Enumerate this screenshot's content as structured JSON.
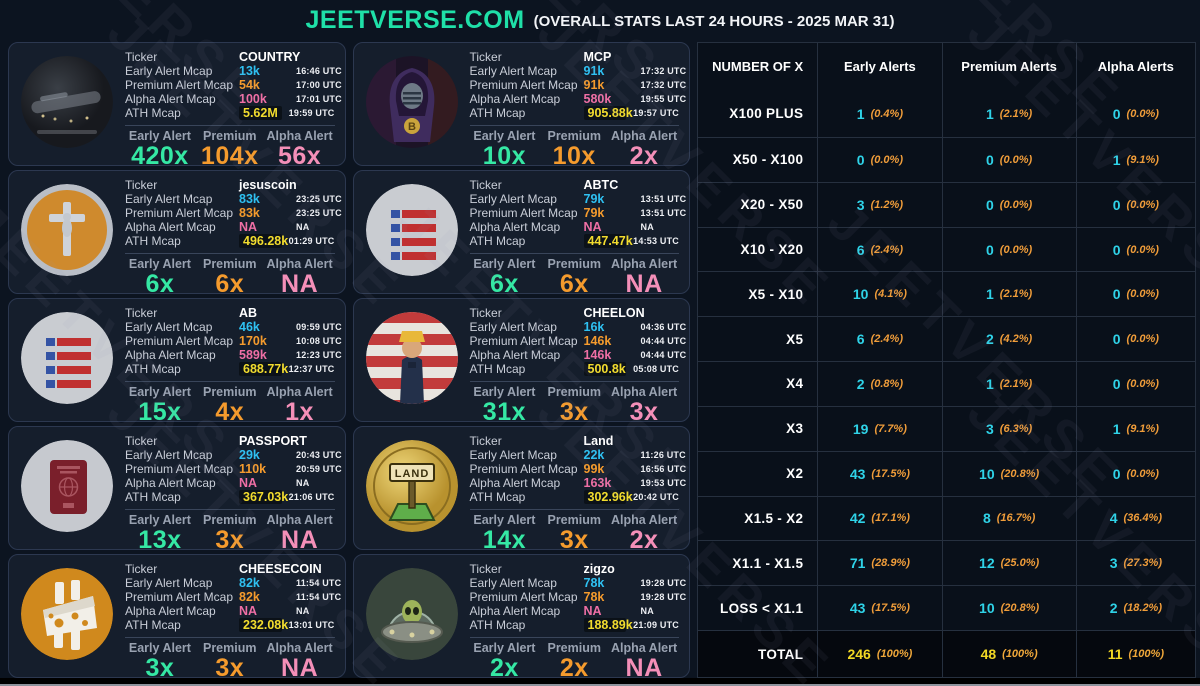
{
  "header": {
    "title": "JEETVERSE.COM",
    "subtitle": "(OVERALL STATS LAST 24 HOURS - 2025 MAR 31)"
  },
  "watermark": "JEETVERSE",
  "field_labels": {
    "ticker": "Ticker",
    "early_mcap": "Early Alert Mcap",
    "premium_mcap": "Premium Alert Mcap",
    "alpha_mcap": "Alpha Alert Mcap",
    "ath_mcap": "ATH Mcap"
  },
  "stat_labels": {
    "early": "Early Alert",
    "premium": "Premium",
    "alpha": "Alpha Alert"
  },
  "cards": [
    {
      "icon": "country",
      "ticker": "COUNTRY",
      "early": {
        "v": "13k",
        "t": "16:46 UTC"
      },
      "premium": {
        "v": "54k",
        "t": "17:00 UTC"
      },
      "alpha": {
        "v": "100k",
        "t": "17:01 UTC"
      },
      "ath": {
        "v": "5.62M",
        "t": "19:59 UTC"
      },
      "x": {
        "early": "420x",
        "premium": "104x",
        "alpha": "56x"
      }
    },
    {
      "icon": "mcp",
      "ticker": "MCP",
      "early": {
        "v": "91k",
        "t": "17:32 UTC"
      },
      "premium": {
        "v": "91k",
        "t": "17:32 UTC"
      },
      "alpha": {
        "v": "580k",
        "t": "19:55 UTC"
      },
      "ath": {
        "v": "905.88k",
        "t": "19:57 UTC"
      },
      "x": {
        "early": "10x",
        "premium": "10x",
        "alpha": "2x"
      }
    },
    {
      "icon": "jesuscoin",
      "ticker": "jesuscoin",
      "early": {
        "v": "83k",
        "t": "23:25 UTC"
      },
      "premium": {
        "v": "83k",
        "t": "23:25 UTC"
      },
      "alpha": {
        "v": "NA",
        "t": "NA"
      },
      "ath": {
        "v": "496.28k",
        "t": "01:29 UTC"
      },
      "x": {
        "early": "6x",
        "premium": "6x",
        "alpha": "NA"
      }
    },
    {
      "icon": "flag",
      "ticker": "ABTC",
      "early": {
        "v": "79k",
        "t": "13:51 UTC"
      },
      "premium": {
        "v": "79k",
        "t": "13:51 UTC"
      },
      "alpha": {
        "v": "NA",
        "t": "NA"
      },
      "ath": {
        "v": "447.47k",
        "t": "14:53 UTC"
      },
      "x": {
        "early": "6x",
        "premium": "6x",
        "alpha": "NA"
      }
    },
    {
      "icon": "flag",
      "ticker": "AB",
      "early": {
        "v": "46k",
        "t": "09:59 UTC"
      },
      "premium": {
        "v": "170k",
        "t": "10:08 UTC"
      },
      "alpha": {
        "v": "589k",
        "t": "12:23 UTC"
      },
      "ath": {
        "v": "688.77k",
        "t": "12:37 UTC"
      },
      "x": {
        "early": "15x",
        "premium": "4x",
        "alpha": "1x"
      }
    },
    {
      "icon": "cheelon",
      "ticker": "CHEELON",
      "early": {
        "v": "16k",
        "t": "04:36 UTC"
      },
      "premium": {
        "v": "146k",
        "t": "04:44 UTC"
      },
      "alpha": {
        "v": "146k",
        "t": "04:44 UTC"
      },
      "ath": {
        "v": "500.8k",
        "t": "05:08 UTC"
      },
      "x": {
        "early": "31x",
        "premium": "3x",
        "alpha": "3x"
      }
    },
    {
      "icon": "passport",
      "ticker": "PASSPORT",
      "early": {
        "v": "29k",
        "t": "20:43 UTC"
      },
      "premium": {
        "v": "110k",
        "t": "20:59 UTC"
      },
      "alpha": {
        "v": "NA",
        "t": "NA"
      },
      "ath": {
        "v": "367.03k",
        "t": "21:06 UTC"
      },
      "x": {
        "early": "13x",
        "premium": "3x",
        "alpha": "NA"
      }
    },
    {
      "icon": "land",
      "ticker": "Land",
      "early": {
        "v": "22k",
        "t": "11:26 UTC"
      },
      "premium": {
        "v": "99k",
        "t": "16:56 UTC"
      },
      "alpha": {
        "v": "163k",
        "t": "19:53 UTC"
      },
      "ath": {
        "v": "302.96k",
        "t": "20:42 UTC"
      },
      "x": {
        "early": "14x",
        "premium": "3x",
        "alpha": "2x"
      }
    },
    {
      "icon": "cheesecoin",
      "ticker": "CHEESECOIN",
      "early": {
        "v": "82k",
        "t": "11:54 UTC"
      },
      "premium": {
        "v": "82k",
        "t": "11:54 UTC"
      },
      "alpha": {
        "v": "NA",
        "t": "NA"
      },
      "ath": {
        "v": "232.08k",
        "t": "13:01 UTC"
      },
      "x": {
        "early": "3x",
        "premium": "3x",
        "alpha": "NA"
      }
    },
    {
      "icon": "zigzo",
      "ticker": "zigzo",
      "early": {
        "v": "78k",
        "t": "19:28 UTC"
      },
      "premium": {
        "v": "78k",
        "t": "19:28 UTC"
      },
      "alpha": {
        "v": "NA",
        "t": "NA"
      },
      "ath": {
        "v": "188.89k",
        "t": "21:09 UTC"
      },
      "x": {
        "early": "2x",
        "premium": "2x",
        "alpha": "NA"
      }
    }
  ],
  "table": {
    "headers": [
      "NUMBER OF X",
      "Early Alerts",
      "Premium Alerts",
      "Alpha Alerts"
    ],
    "rows": [
      {
        "label": "X100 PLUS",
        "early": {
          "n": "1",
          "pct": "(0.4%)"
        },
        "premium": {
          "n": "1",
          "pct": "(2.1%)"
        },
        "alpha": {
          "n": "0",
          "pct": "(0.0%)"
        }
      },
      {
        "label": "X50 - X100",
        "early": {
          "n": "0",
          "pct": "(0.0%)"
        },
        "premium": {
          "n": "0",
          "pct": "(0.0%)"
        },
        "alpha": {
          "n": "1",
          "pct": "(9.1%)"
        }
      },
      {
        "label": "X20 - X50",
        "early": {
          "n": "3",
          "pct": "(1.2%)"
        },
        "premium": {
          "n": "0",
          "pct": "(0.0%)"
        },
        "alpha": {
          "n": "0",
          "pct": "(0.0%)"
        }
      },
      {
        "label": "X10 - X20",
        "early": {
          "n": "6",
          "pct": "(2.4%)"
        },
        "premium": {
          "n": "0",
          "pct": "(0.0%)"
        },
        "alpha": {
          "n": "0",
          "pct": "(0.0%)"
        }
      },
      {
        "label": "X5 - X10",
        "early": {
          "n": "10",
          "pct": "(4.1%)"
        },
        "premium": {
          "n": "1",
          "pct": "(2.1%)"
        },
        "alpha": {
          "n": "0",
          "pct": "(0.0%)"
        }
      },
      {
        "label": "X5",
        "early": {
          "n": "6",
          "pct": "(2.4%)"
        },
        "premium": {
          "n": "2",
          "pct": "(4.2%)"
        },
        "alpha": {
          "n": "0",
          "pct": "(0.0%)"
        }
      },
      {
        "label": "X4",
        "early": {
          "n": "2",
          "pct": "(0.8%)"
        },
        "premium": {
          "n": "1",
          "pct": "(2.1%)"
        },
        "alpha": {
          "n": "0",
          "pct": "(0.0%)"
        }
      },
      {
        "label": "X3",
        "early": {
          "n": "19",
          "pct": "(7.7%)"
        },
        "premium": {
          "n": "3",
          "pct": "(6.3%)"
        },
        "alpha": {
          "n": "1",
          "pct": "(9.1%)"
        }
      },
      {
        "label": "X2",
        "early": {
          "n": "43",
          "pct": "(17.5%)"
        },
        "premium": {
          "n": "10",
          "pct": "(20.8%)"
        },
        "alpha": {
          "n": "0",
          "pct": "(0.0%)"
        }
      },
      {
        "label": "X1.5 - X2",
        "early": {
          "n": "42",
          "pct": "(17.1%)"
        },
        "premium": {
          "n": "8",
          "pct": "(16.7%)"
        },
        "alpha": {
          "n": "4",
          "pct": "(36.4%)"
        }
      },
      {
        "label": "X1.1 - X1.5",
        "early": {
          "n": "71",
          "pct": "(28.9%)"
        },
        "premium": {
          "n": "12",
          "pct": "(25.0%)"
        },
        "alpha": {
          "n": "3",
          "pct": "(27.3%)"
        }
      },
      {
        "label": "LOSS < X1.1",
        "early": {
          "n": "43",
          "pct": "(17.5%)"
        },
        "premium": {
          "n": "10",
          "pct": "(20.8%)"
        },
        "alpha": {
          "n": "2",
          "pct": "(18.2%)"
        }
      }
    ],
    "total": {
      "label": "TOTAL",
      "early": {
        "n": "246",
        "pct": "(100%)"
      },
      "premium": {
        "n": "48",
        "pct": "(100%)"
      },
      "alpha": {
        "n": "11",
        "pct": "(100%)"
      }
    }
  },
  "colors": {
    "accent_teal": "#1fe0a8",
    "cyan": "#2fc1f2",
    "orange": "#f59b2d",
    "pink": "#ef6fa5",
    "pink_light": "#f48fb8",
    "yellow": "#f2dc2e",
    "green": "#35e8a4",
    "table_cyan": "#2fd3e8",
    "total_yellow": "#f2d824",
    "card_bg": "#151e2c",
    "page_bg": "#0c1420"
  }
}
